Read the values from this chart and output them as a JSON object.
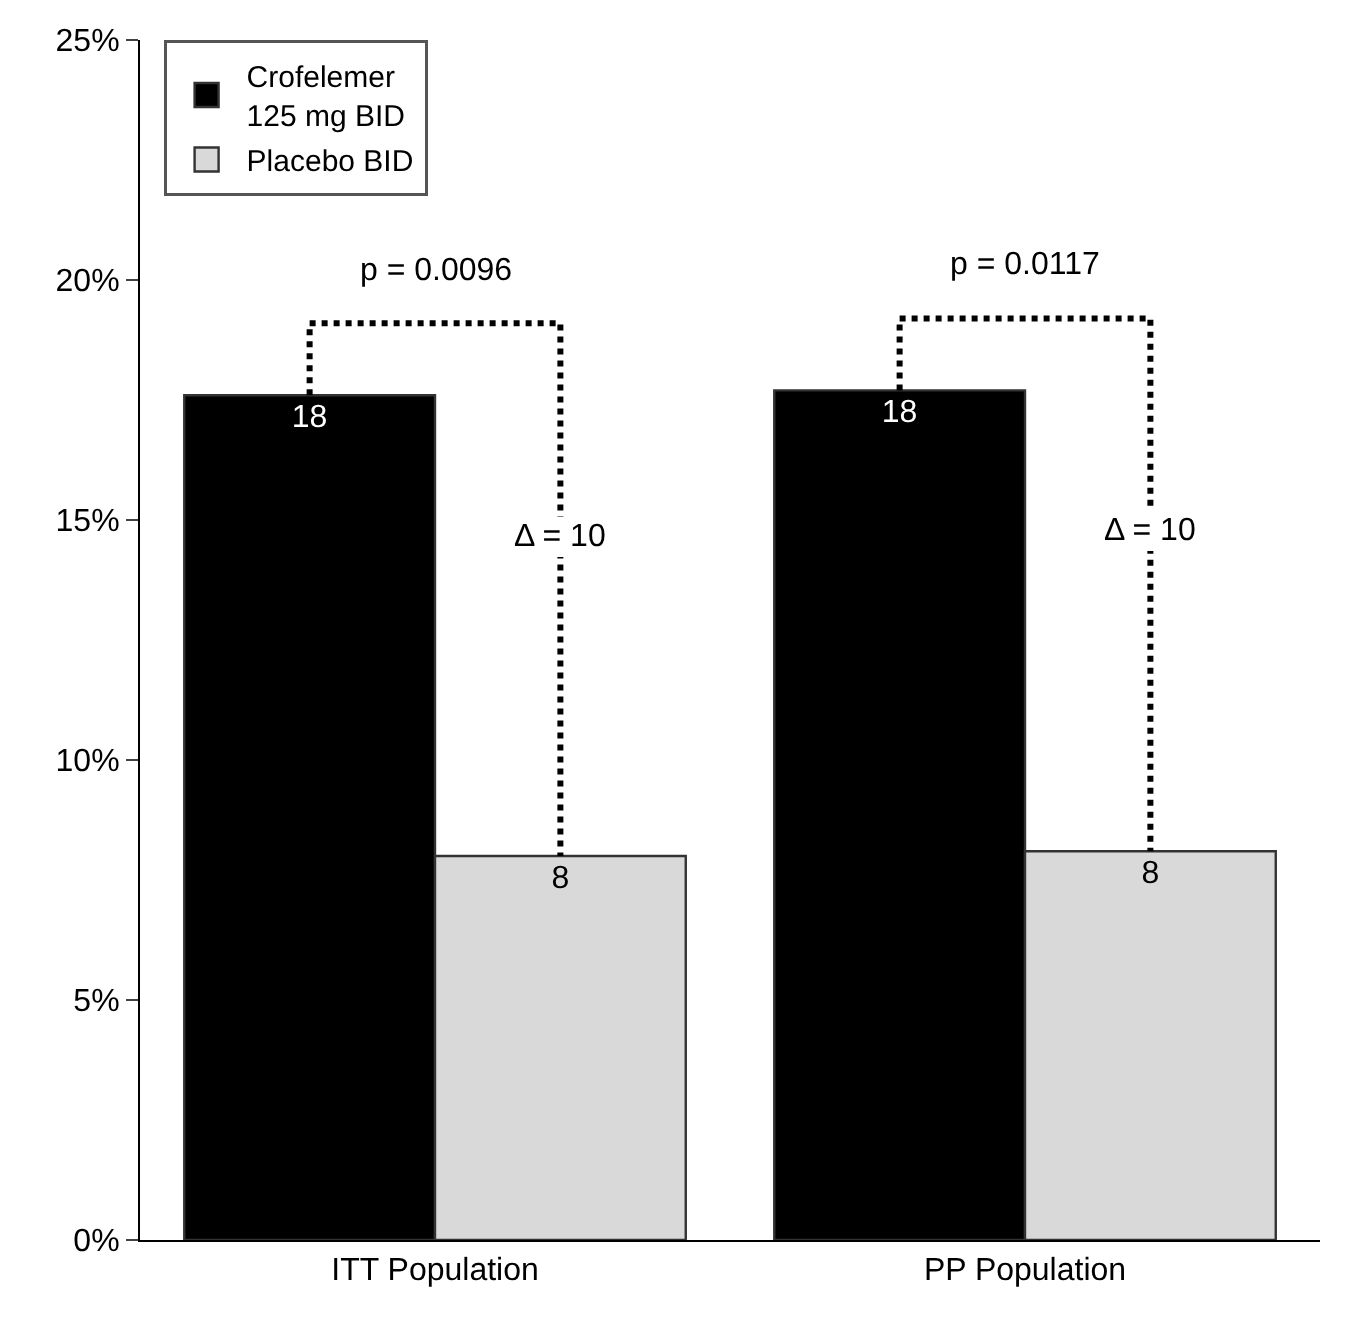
{
  "chart_data": {
    "type": "bar",
    "categories": [
      "ITT Population",
      "PP Population"
    ],
    "series": [
      {
        "name": "Crofelemer\n125 mg BID",
        "color": "#000000",
        "values": [
          17.6,
          17.7
        ],
        "value_labels": [
          "18",
          "18"
        ]
      },
      {
        "name": "Placebo BID",
        "color": "#d9d9d9",
        "values": [
          8.0,
          8.1
        ],
        "value_labels": [
          "8",
          "8"
        ]
      }
    ],
    "ylim": [
      0,
      25
    ],
    "yticks": [
      {
        "value": 0,
        "label": "0%"
      },
      {
        "value": 5,
        "label": "5%"
      },
      {
        "value": 10,
        "label": "10%"
      },
      {
        "value": 15,
        "label": "15%"
      },
      {
        "value": 20,
        "label": "20%"
      },
      {
        "value": 25,
        "label": "25%"
      }
    ],
    "annotations": [
      "p = 0.0096",
      "Δ = 10",
      "p = 0.0117",
      "Δ = 10"
    ],
    "legend": "top left"
  }
}
